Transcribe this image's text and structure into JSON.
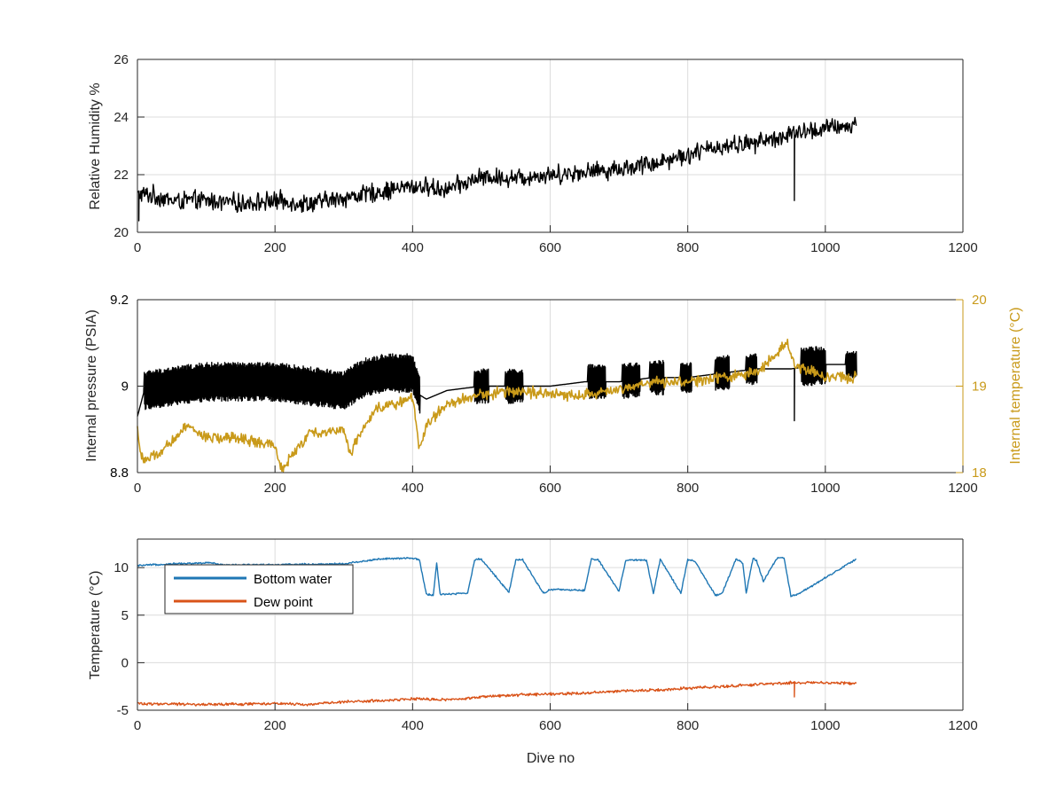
{
  "figure": {
    "background": "#ffffff",
    "grid": true,
    "colors": {
      "axis": "#262626",
      "grid": "#dcdcdc",
      "black_series": "#000000",
      "temperature_series": "#c99a1a",
      "bottom_water": "#1f77b4",
      "dew_point": "#d95319"
    }
  },
  "chart_data": [
    {
      "type": "line",
      "ylabel": "Relative Humidity %",
      "xlabel": "",
      "xlim": [
        0,
        1200
      ],
      "ylim": [
        20,
        26
      ],
      "xticks": [
        "0",
        "200",
        "400",
        "600",
        "800",
        "1000",
        "1200"
      ],
      "yticks": [
        "20",
        "22",
        "24",
        "26"
      ],
      "series": [
        {
          "name": "",
          "color": "#000000",
          "x": [
            0,
            20,
            50,
            100,
            150,
            200,
            250,
            300,
            350,
            400,
            450,
            500,
            550,
            600,
            650,
            700,
            750,
            800,
            850,
            900,
            950,
            1000,
            1045
          ],
          "y": [
            21.3,
            21.3,
            21.1,
            21.1,
            21.0,
            21.1,
            21.0,
            21.2,
            21.4,
            21.6,
            21.5,
            21.9,
            21.9,
            22.0,
            22.1,
            22.2,
            22.4,
            22.7,
            23.0,
            23.1,
            23.4,
            23.6,
            23.7
          ],
          "noise": 0.4,
          "spikes": [
            {
              "x": 2,
              "y": 20.4
            },
            {
              "x": 955,
              "y": 21.1
            }
          ]
        }
      ]
    },
    {
      "type": "line",
      "ylabel": "Internal pressure (PSIA)",
      "ylabel_right": "Internal temperature (°C)",
      "xlabel": "",
      "xlim": [
        0,
        1200
      ],
      "ylim": [
        8.8,
        9.2
      ],
      "ylim_right": [
        18,
        20
      ],
      "xticks": [
        "0",
        "200",
        "400",
        "600",
        "800",
        "1000",
        "1200"
      ],
      "yticks": [
        "8.8",
        "9",
        "9.2"
      ],
      "yticks_right": [
        "18",
        "19",
        "20"
      ],
      "series": [
        {
          "name": "",
          "axis": "left",
          "color": "#000000",
          "x": [
            0,
            10,
            50,
            100,
            150,
            200,
            250,
            300,
            330,
            360,
            400,
            410,
            420,
            450,
            500,
            550,
            600,
            650,
            700,
            750,
            800,
            850,
            900,
            950,
            1000,
            1045
          ],
          "y": [
            8.93,
            8.99,
            9.0,
            9.01,
            9.01,
            9.01,
            9.0,
            8.99,
            9.02,
            9.03,
            9.03,
            8.98,
            8.97,
            8.99,
            9.0,
            9.0,
            9.0,
            9.01,
            9.01,
            9.02,
            9.02,
            9.03,
            9.04,
            9.04,
            9.05,
            9.05
          ],
          "oscillation_bands": [
            {
              "x": [
                10,
                410
              ],
              "amplitude": 0.045
            },
            {
              "x": [
                490,
                510
              ],
              "amplitude": 0.04
            },
            {
              "x": [
                535,
                560
              ],
              "amplitude": 0.04
            },
            {
              "x": [
                655,
                680
              ],
              "amplitude": 0.04
            },
            {
              "x": [
                705,
                730
              ],
              "amplitude": 0.04
            },
            {
              "x": [
                745,
                765
              ],
              "amplitude": 0.04
            },
            {
              "x": [
                790,
                805
              ],
              "amplitude": 0.035
            },
            {
              "x": [
                840,
                860
              ],
              "amplitude": 0.04
            },
            {
              "x": [
                885,
                900
              ],
              "amplitude": 0.035
            },
            {
              "x": [
                965,
                1000
              ],
              "amplitude": 0.045
            },
            {
              "x": [
                1030,
                1045
              ],
              "amplitude": 0.03
            }
          ],
          "spikes": [
            {
              "x": 955,
              "y": 8.92
            }
          ]
        },
        {
          "name": "",
          "axis": "right",
          "color": "#c99a1a",
          "x": [
            0,
            5,
            10,
            30,
            50,
            70,
            100,
            150,
            200,
            210,
            250,
            300,
            310,
            320,
            350,
            400,
            410,
            420,
            450,
            500,
            550,
            600,
            650,
            700,
            750,
            800,
            850,
            900,
            945,
            955,
            1000,
            1045
          ],
          "y": [
            18.5,
            18.2,
            18.15,
            18.2,
            18.35,
            18.55,
            18.4,
            18.4,
            18.3,
            18.05,
            18.45,
            18.5,
            18.2,
            18.4,
            18.75,
            18.85,
            18.3,
            18.55,
            18.8,
            18.9,
            18.95,
            18.9,
            18.9,
            18.95,
            19.05,
            19.05,
            19.1,
            19.15,
            19.5,
            19.25,
            19.1,
            19.1
          ],
          "noise": 0.08
        }
      ]
    },
    {
      "type": "line",
      "ylabel": "Temperature (°C)",
      "xlabel": "Dive no",
      "xlim": [
        0,
        1200
      ],
      "ylim": [
        -5,
        13
      ],
      "xticks": [
        "0",
        "200",
        "400",
        "600",
        "800",
        "1000",
        "1200"
      ],
      "yticks": [
        "-5",
        "0",
        "5",
        "10"
      ],
      "legend": {
        "placement": "top-left",
        "entries": [
          {
            "label": "Bottom water",
            "color": "#1f77b4"
          },
          {
            "label": "Dew point",
            "color": "#d95319"
          }
        ]
      },
      "series": [
        {
          "name": "Bottom water",
          "color": "#1f77b4",
          "x": [
            0,
            50,
            110,
            120,
            200,
            300,
            350,
            400,
            410,
            420,
            430,
            435,
            440,
            480,
            490,
            500,
            540,
            550,
            560,
            590,
            600,
            650,
            660,
            670,
            700,
            710,
            740,
            750,
            760,
            790,
            800,
            810,
            840,
            850,
            870,
            880,
            885,
            895,
            900,
            910,
            930,
            940,
            950,
            960,
            1045
          ],
          "y": [
            10.2,
            10.4,
            10.5,
            10.3,
            10.3,
            10.4,
            10.9,
            11.0,
            10.8,
            7.2,
            7.1,
            10.5,
            7.2,
            7.3,
            10.8,
            10.9,
            7.4,
            10.8,
            10.8,
            7.3,
            7.7,
            7.6,
            10.9,
            10.8,
            7.5,
            10.8,
            10.8,
            7.3,
            10.9,
            7.3,
            10.8,
            10.7,
            7.1,
            7.3,
            10.9,
            10.5,
            7.3,
            11.0,
            10.7,
            8.6,
            11.0,
            11.0,
            7.0,
            7.2,
            10.9
          ],
          "noise": 0.12
        },
        {
          "name": "Dew point",
          "color": "#d95319",
          "x": [
            0,
            100,
            200,
            250,
            300,
            350,
            400,
            450,
            500,
            550,
            600,
            650,
            700,
            750,
            800,
            850,
            900,
            950,
            1000,
            1045
          ],
          "y": [
            -4.3,
            -4.4,
            -4.3,
            -4.4,
            -4.1,
            -4.0,
            -3.8,
            -3.9,
            -3.6,
            -3.4,
            -3.3,
            -3.2,
            -3.0,
            -2.9,
            -2.7,
            -2.5,
            -2.3,
            -2.1,
            -2.1,
            -2.2
          ],
          "noise": 0.18,
          "spikes": [
            {
              "x": 955,
              "y": -3.6
            }
          ]
        }
      ]
    }
  ]
}
